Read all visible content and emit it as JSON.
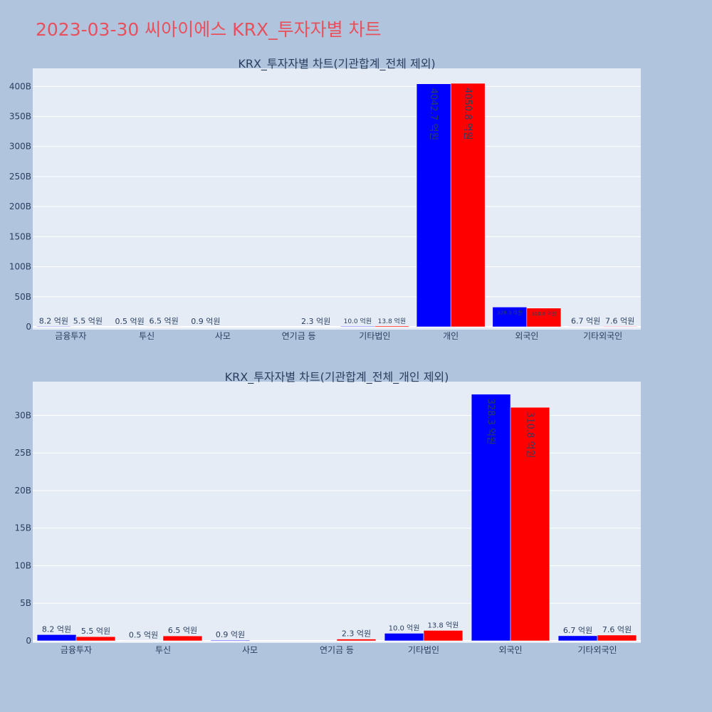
{
  "page": {
    "title": "2023-03-30 씨아이에스 KRX_투자자별 차트",
    "title_color": "#e8505b",
    "background": "#b0c4de",
    "plot_background": "#e5ecf6",
    "series_colors": [
      "#0000ff",
      "#ff0000"
    ]
  },
  "chart_data": [
    {
      "type": "bar",
      "title": "KRX_투자자별 차트(기관합계_전체 제외)",
      "categories": [
        "금융투자",
        "투신",
        "사모",
        "연기금 등",
        "기타법인",
        "개인",
        "외국인",
        "기타외국인"
      ],
      "ylim": [
        0,
        430
      ],
      "y_ticks": [
        0,
        50,
        100,
        150,
        200,
        250,
        300,
        350,
        400
      ],
      "y_tick_labels": [
        "0",
        "50B",
        "100B",
        "150B",
        "200B",
        "250B",
        "300B",
        "350B",
        "400B"
      ],
      "grid": true,
      "series": [
        {
          "values": [
            0.82,
            0.05,
            0.09,
            0,
            1.0,
            404.27,
            32.83,
            0.67
          ],
          "labels": [
            "8.2 억원",
            "0.5 억원",
            "0.9 억원",
            "",
            "10.0 억원",
            "4042.7 억원",
            "328.3 억원",
            "6.7 억원"
          ]
        },
        {
          "values": [
            0.55,
            0.65,
            0,
            0.23,
            1.38,
            405.08,
            31.08,
            0.76
          ],
          "labels": [
            "5.5 억원",
            "6.5 억원",
            "",
            "2.3 억원",
            "13.8 억원",
            "4050.8 억원",
            "310.8 억원",
            "7.6 억원"
          ]
        }
      ]
    },
    {
      "type": "bar",
      "title": "KRX_투자자별 차트(기관합계_전체_개인 제외)",
      "categories": [
        "금융투자",
        "투신",
        "사모",
        "연기금 등",
        "기타법인",
        "외국인",
        "기타외국인"
      ],
      "ylim": [
        0,
        34.5
      ],
      "y_ticks": [
        0,
        5,
        10,
        15,
        20,
        25,
        30
      ],
      "y_tick_labels": [
        "0",
        "5B",
        "10B",
        "15B",
        "20B",
        "25B",
        "30B"
      ],
      "grid": true,
      "series": [
        {
          "values": [
            0.82,
            0.05,
            0.09,
            0,
            1.0,
            32.83,
            0.67
          ],
          "labels": [
            "8.2 억원",
            "0.5 억원",
            "0.9 억원",
            "",
            "10.0 억원",
            "328.3 억원",
            "6.7 억원"
          ]
        },
        {
          "values": [
            0.55,
            0.65,
            0,
            0.23,
            1.38,
            31.08,
            0.76
          ],
          "labels": [
            "5.5 억원",
            "6.5 억원",
            "",
            "2.3 억원",
            "13.8 억원",
            "310.8 억원",
            "7.6 억원"
          ]
        }
      ]
    }
  ]
}
